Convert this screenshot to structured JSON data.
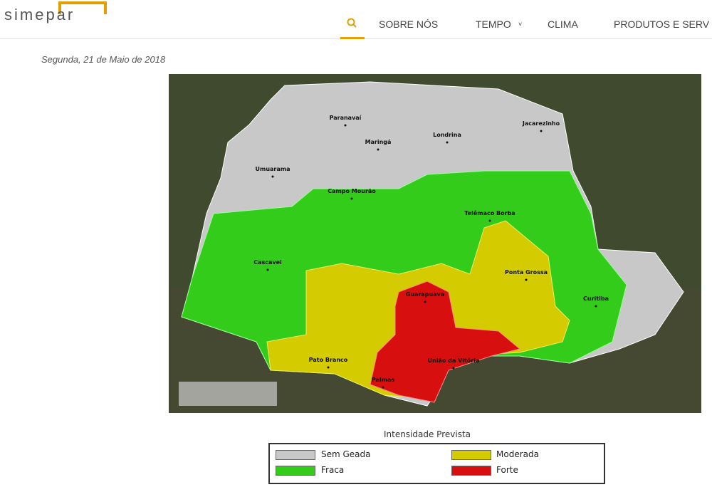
{
  "header": {
    "logo": "simepar",
    "nav": [
      "SOBRE NÓS",
      "TEMPO",
      "CLIMA",
      "PRODUTOS E SERV"
    ]
  },
  "date": "Segunda, 21 de Maio de 2018",
  "map": {
    "cities": [
      "Paranavaí",
      "Jacarezinho",
      "Maringá",
      "Londrina",
      "Umuarama",
      "Campo Mourão",
      "Telêmaco Borba",
      "Cascavel",
      "Ponta Grossa",
      "Guarapuava",
      "Curitiba",
      "Pato Branco",
      "União da Vitória",
      "Palmas"
    ]
  },
  "legend": {
    "title": "Intensidade Prevista",
    "items": [
      "Sem Geada",
      "Moderada",
      "Fraca",
      "Forte"
    ]
  }
}
